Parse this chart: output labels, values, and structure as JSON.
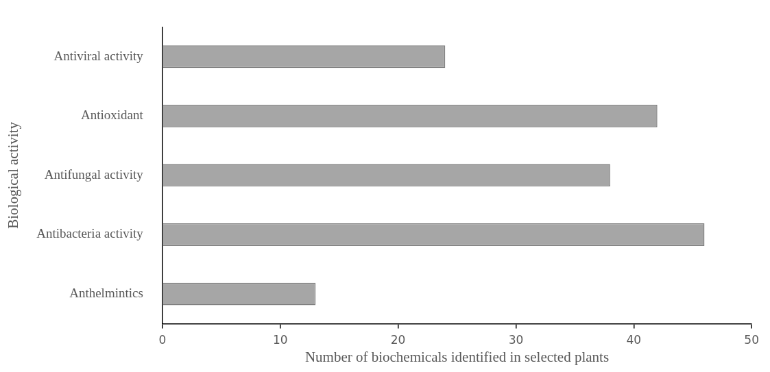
{
  "chart_data": {
    "type": "bar",
    "orientation": "horizontal",
    "xlabel": "Number of biochemicals identified in selected plants",
    "ylabel": "Biological activity",
    "categories": [
      "Antiviral activity",
      "Antioxidant",
      "Antifungal activity",
      "Antibacteria activity",
      "Anthelmintics"
    ],
    "values": [
      24,
      42,
      38,
      46,
      13
    ],
    "color": "#a6a6a6",
    "xlim": [
      0,
      50
    ],
    "xticks": [
      0,
      10,
      20,
      30,
      40,
      50
    ],
    "grid": false,
    "legend": false
  }
}
